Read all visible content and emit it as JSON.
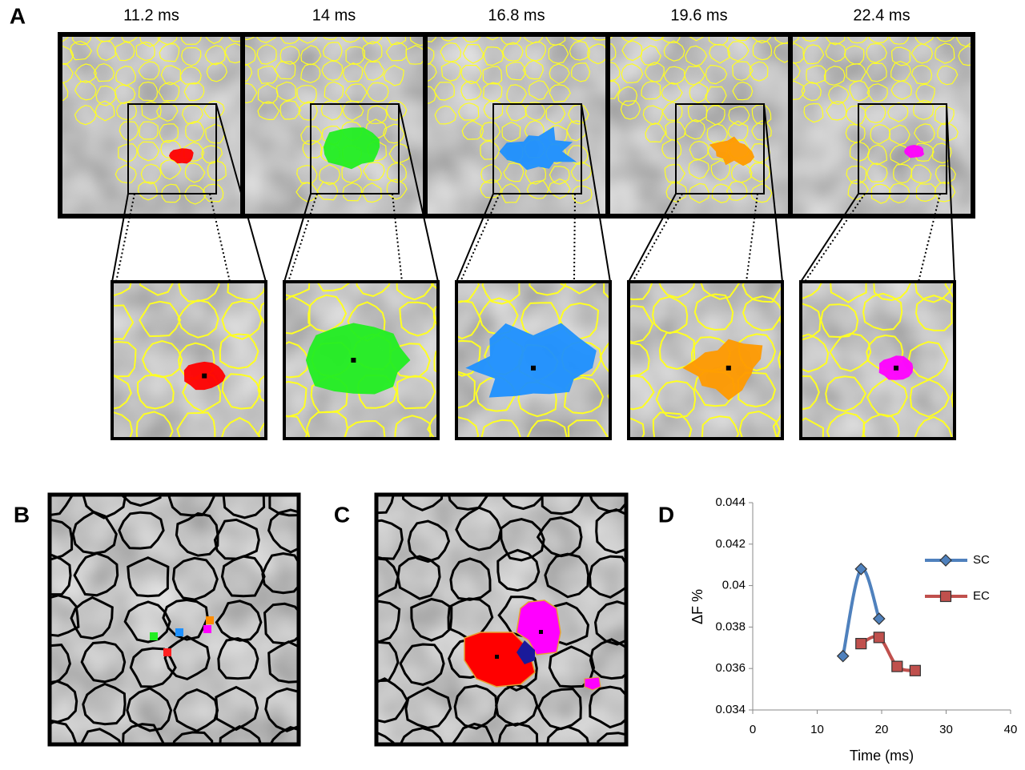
{
  "panels": {
    "A": {
      "label": "A",
      "times": [
        "11.2  ms",
        "14 ms",
        "16.8 ms",
        "19.6 ms",
        "22.4 ms"
      ]
    },
    "B": {
      "label": "B"
    },
    "C": {
      "label": "C"
    }
  },
  "chart_data": {
    "type": "line",
    "label": "D",
    "xlabel": "Time (ms)",
    "ylabel": "ΔF %",
    "xlim": [
      0,
      40
    ],
    "xticks": [
      0,
      10,
      20,
      30,
      40
    ],
    "ylim": [
      0.034,
      0.044
    ],
    "yticks": [
      0.034,
      0.036,
      0.038,
      0.04,
      0.042,
      0.044
    ],
    "series": [
      {
        "name": "SC",
        "color": "#4f81bd",
        "marker": "diamond",
        "x": [
          14,
          16.8,
          19.6
        ],
        "values": [
          0.0366,
          0.0408,
          0.0384
        ]
      },
      {
        "name": "EC",
        "color": "#c0504d",
        "marker": "square",
        "x": [
          16.8,
          19.6,
          22.4,
          25.2
        ],
        "values": [
          0.0372,
          0.0375,
          0.0361,
          0.0359
        ]
      }
    ]
  }
}
